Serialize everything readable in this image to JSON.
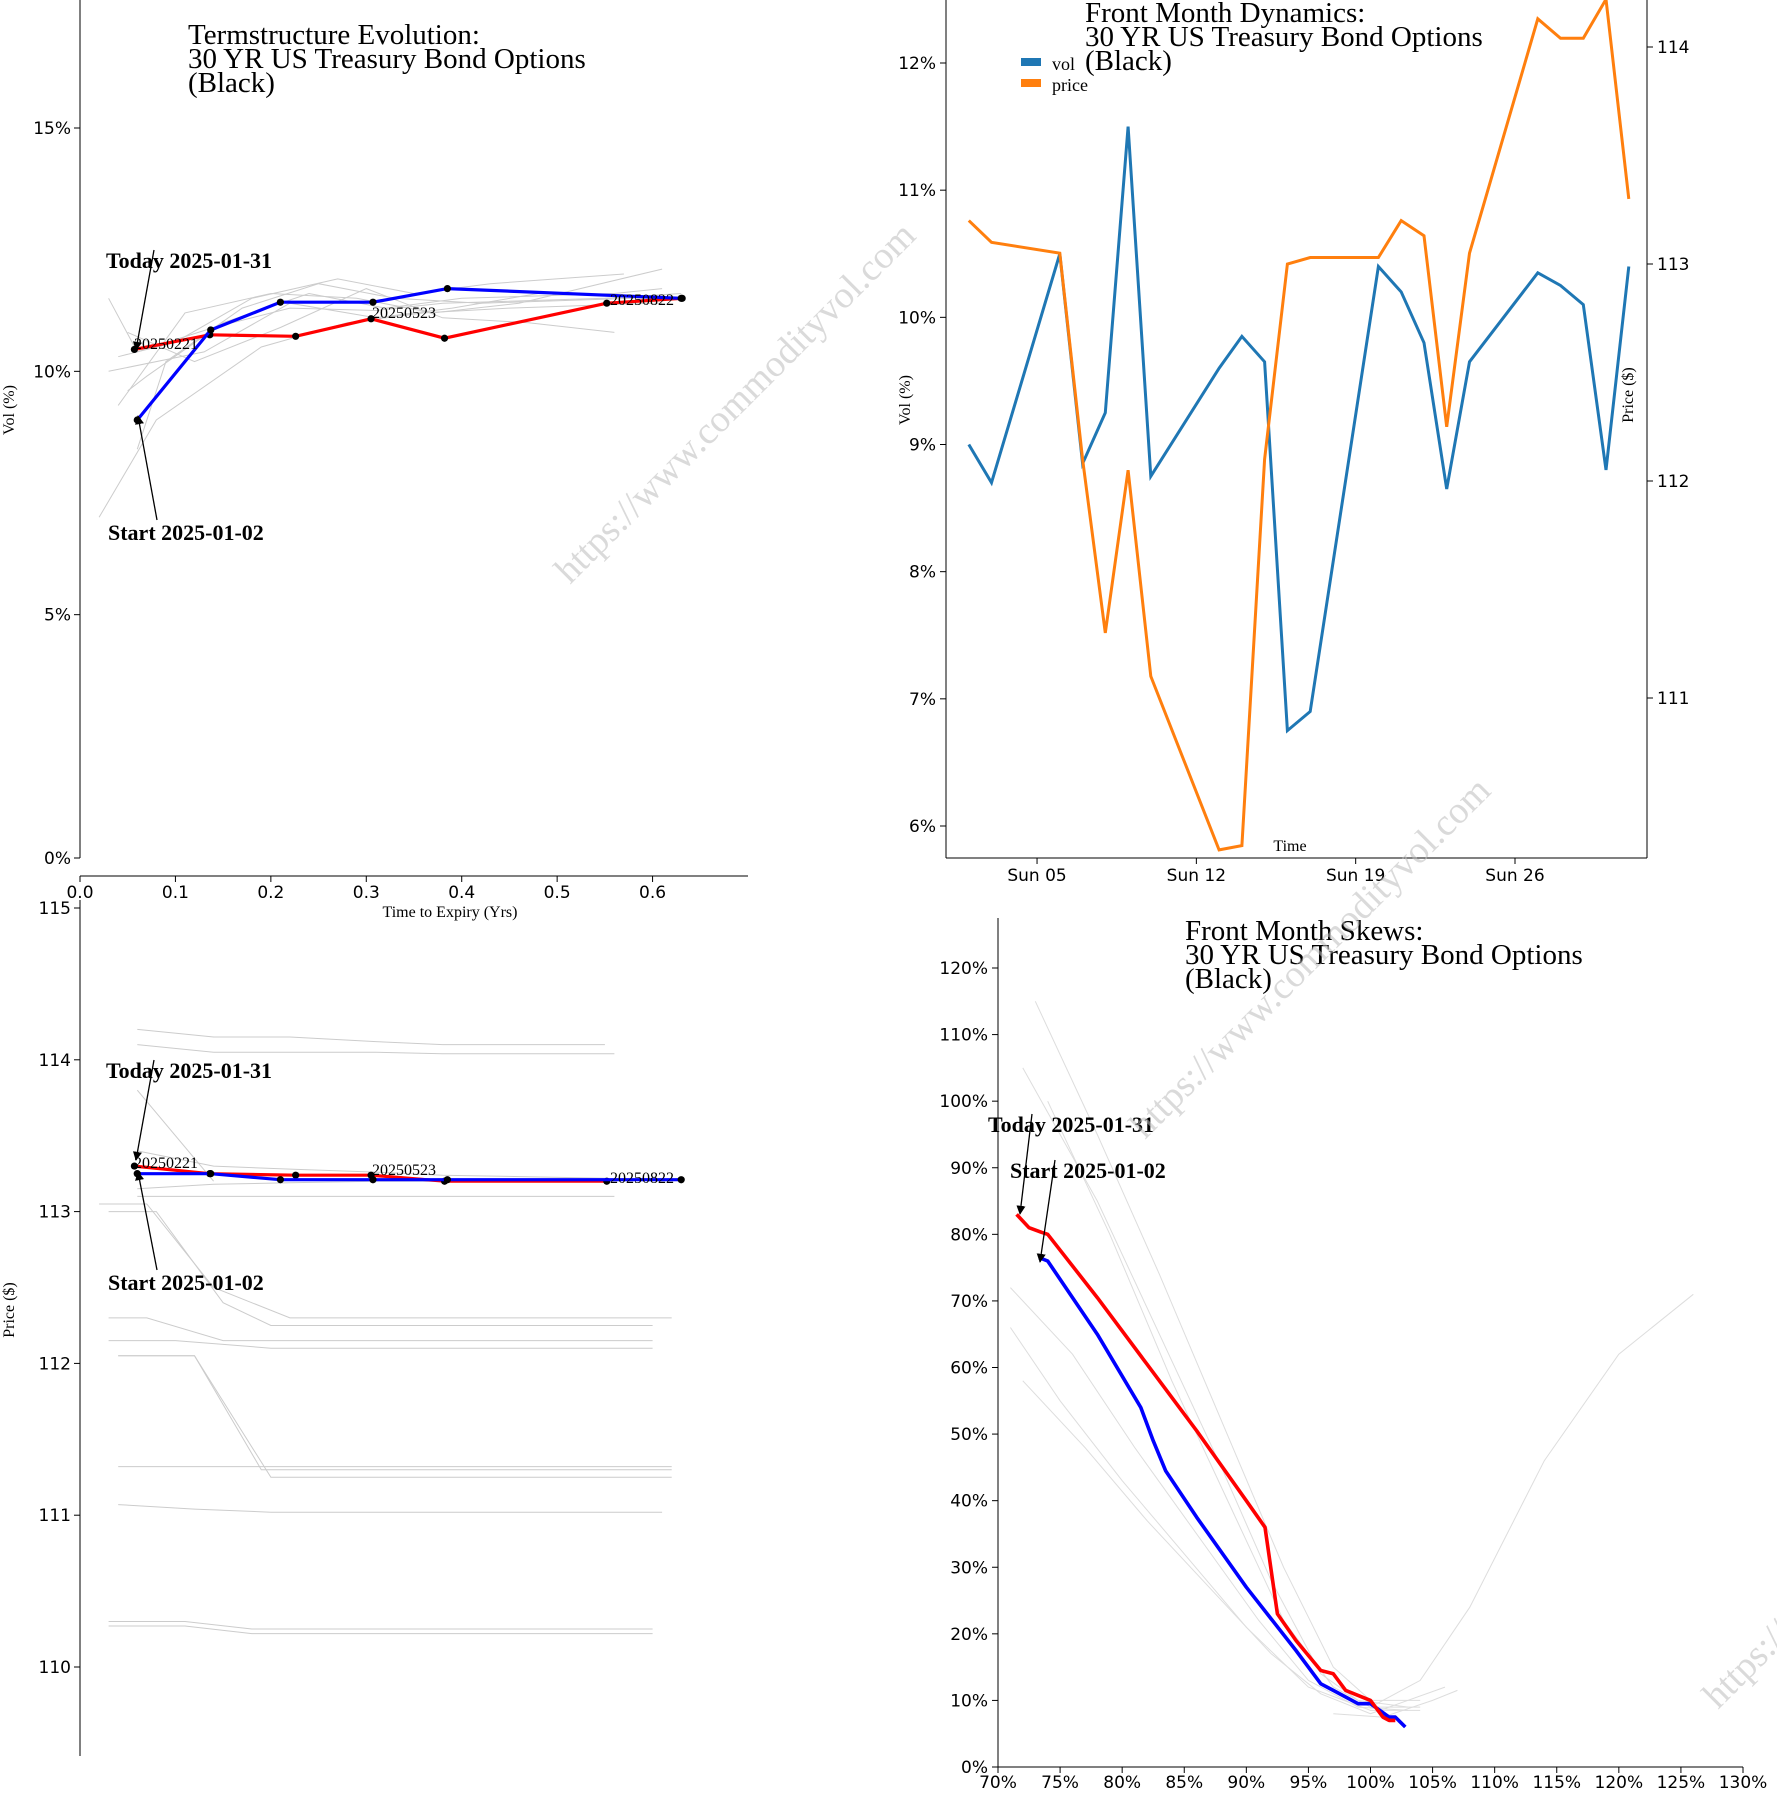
{
  "watermark": "https://www.commodityvol.com",
  "colors": {
    "today": "#ff0000",
    "start": "#0000ff",
    "history": "#cccccc",
    "vol": "#1f77b4",
    "price": "#ff7f0e"
  },
  "chart_data": [
    {
      "id": "termstructure-vol",
      "type": "line",
      "title": [
        "Termstructure Evolution:",
        "30 YR US Treasury Bond Options",
        "(Black)"
      ],
      "xlabel": "Time to Expiry (Yrs)",
      "ylabel": "Vol (%)",
      "xlim": [
        0,
        0.7
      ],
      "ylim": [
        0,
        17.5
      ],
      "xticks": [
        "0.0",
        "0.1",
        "0.2",
        "0.3",
        "0.4",
        "0.5",
        "0.6"
      ],
      "yticks": [
        "0%",
        "5%",
        "10%",
        "15%"
      ],
      "annotations": {
        "today": "Today 2025-01-31",
        "start": "Start 2025-01-02"
      },
      "point_labels": [
        "20250221",
        "20250523",
        "20250822"
      ],
      "series": [
        {
          "role": "today",
          "x": [
            0.057,
            0.136,
            0.226,
            0.305,
            0.382,
            0.552,
            0.631
          ],
          "y": [
            10.45,
            10.75,
            10.72,
            11.08,
            10.68,
            11.4,
            11.5
          ]
        },
        {
          "role": "start",
          "x": [
            0.06,
            0.137,
            0.21,
            0.307,
            0.385,
            0.63
          ],
          "y": [
            9.0,
            10.85,
            11.42,
            11.42,
            11.7,
            11.5
          ]
        }
      ],
      "history": [
        {
          "x": [
            0.03,
            0.06,
            0.14,
            0.22,
            0.31,
            0.38,
            0.55,
            0.63
          ],
          "y": [
            11.5,
            10.4,
            10.9,
            11.3,
            11.25,
            11.4,
            11.5,
            11.6
          ]
        },
        {
          "x": [
            0.05,
            0.07,
            0.15,
            0.24,
            0.32,
            0.4,
            0.56,
            0.61
          ],
          "y": [
            9.6,
            9.9,
            11.0,
            11.6,
            11.3,
            11.5,
            11.6,
            11.7
          ]
        },
        {
          "x": [
            0.06,
            0.09,
            0.17,
            0.25,
            0.33,
            0.42,
            0.58,
            0.61
          ],
          "y": [
            8.4,
            10.2,
            11.3,
            11.8,
            11.5,
            11.4,
            11.5,
            11.5
          ]
        },
        {
          "x": [
            0.04,
            0.1,
            0.18,
            0.27,
            0.35,
            0.43,
            0.57
          ],
          "y": [
            10.3,
            10.6,
            11.5,
            11.9,
            11.6,
            11.8,
            12.0
          ]
        },
        {
          "x": [
            0.02,
            0.08,
            0.19,
            0.28,
            0.36,
            0.45,
            0.6,
            0.61
          ],
          "y": [
            7.0,
            9.0,
            10.5,
            11.0,
            11.2,
            11.3,
            11.4,
            11.4
          ]
        },
        {
          "x": [
            0.04,
            0.11,
            0.2,
            0.29,
            0.37,
            0.46,
            0.61
          ],
          "y": [
            9.3,
            11.2,
            11.6,
            11.5,
            11.2,
            11.4,
            12.1
          ]
        },
        {
          "x": [
            0.05,
            0.12,
            0.21,
            0.3,
            0.38,
            0.47,
            0.56
          ],
          "y": [
            10.8,
            10.2,
            10.9,
            11.7,
            11.1,
            11.0,
            10.8
          ]
        },
        {
          "x": [
            0.03,
            0.13,
            0.22,
            0.31,
            0.39,
            0.48
          ],
          "y": [
            10.0,
            10.4,
            11.4,
            11.1,
            11.3,
            11.6
          ]
        }
      ]
    },
    {
      "id": "termstructure-price",
      "type": "line",
      "title": [],
      "xlabel": "",
      "ylabel": "Price ($)",
      "xlim": [
        0,
        0.7
      ],
      "ylim": [
        109.4,
        115
      ],
      "yticks": [
        "110",
        "111",
        "112",
        "113",
        "114",
        "115"
      ],
      "annotations": {
        "today": "Today 2025-01-31",
        "start": "Start 2025-01-02"
      },
      "point_labels": [
        "20250221",
        "20250523",
        "20250822"
      ],
      "series": [
        {
          "role": "today",
          "x": [
            0.057,
            0.136,
            0.226,
            0.305,
            0.382,
            0.552
          ],
          "y": [
            113.3,
            113.25,
            113.24,
            113.24,
            113.2,
            113.2
          ]
        },
        {
          "role": "start",
          "x": [
            0.06,
            0.137,
            0.21,
            0.307,
            0.385,
            0.63
          ],
          "y": [
            113.25,
            113.25,
            113.21,
            113.21,
            113.21,
            113.21
          ]
        }
      ],
      "history": [
        {
          "x": [
            0.06,
            0.14,
            0.22,
            0.31,
            0.38,
            0.55
          ],
          "y": [
            114.2,
            114.15,
            114.15,
            114.12,
            114.1,
            114.1
          ]
        },
        {
          "x": [
            0.06,
            0.14,
            0.22,
            0.31,
            0.38,
            0.56
          ],
          "y": [
            114.1,
            114.05,
            114.05,
            114.05,
            114.04,
            114.04
          ]
        },
        {
          "x": [
            0.06,
            0.14,
            0.22,
            0.31,
            0.4,
            0.56
          ],
          "y": [
            113.1,
            113.1,
            113.1,
            113.1,
            113.1,
            113.1
          ]
        },
        {
          "x": [
            0.02,
            0.07,
            0.14,
            0.22,
            0.31,
            0.4,
            0.62
          ],
          "y": [
            113.05,
            113.05,
            112.5,
            112.3,
            112.3,
            112.3,
            112.3
          ]
        },
        {
          "x": [
            0.03,
            0.08,
            0.15,
            0.2,
            0.31,
            0.44,
            0.6
          ],
          "y": [
            113.0,
            113.0,
            112.4,
            112.25,
            112.25,
            112.25,
            112.25
          ]
        },
        {
          "x": [
            0.03,
            0.07,
            0.15,
            0.31,
            0.6
          ],
          "y": [
            112.3,
            112.3,
            112.15,
            112.15,
            112.15
          ]
        },
        {
          "x": [
            0.03,
            0.1,
            0.2,
            0.31,
            0.6
          ],
          "y": [
            112.15,
            112.15,
            112.1,
            112.1,
            112.1
          ]
        },
        {
          "x": [
            0.04,
            0.12,
            0.19,
            0.31,
            0.62
          ],
          "y": [
            112.05,
            112.05,
            111.3,
            111.3,
            111.3
          ]
        },
        {
          "x": [
            0.04,
            0.12,
            0.2,
            0.31,
            0.62
          ],
          "y": [
            112.05,
            112.05,
            111.25,
            111.25,
            111.25
          ]
        },
        {
          "x": [
            0.04,
            0.12,
            0.2,
            0.31,
            0.62
          ],
          "y": [
            111.32,
            111.32,
            111.32,
            111.32,
            111.32
          ]
        },
        {
          "x": [
            0.04,
            0.12,
            0.2,
            0.31,
            0.61
          ],
          "y": [
            111.07,
            111.04,
            111.02,
            111.02,
            111.02
          ]
        },
        {
          "x": [
            0.03,
            0.11,
            0.18,
            0.31,
            0.6
          ],
          "y": [
            110.3,
            110.3,
            110.25,
            110.25,
            110.25
          ]
        },
        {
          "x": [
            0.03,
            0.11,
            0.18,
            0.31,
            0.6
          ],
          "y": [
            110.27,
            110.27,
            110.22,
            110.22,
            110.22
          ]
        },
        {
          "x": [
            0.06,
            0.14,
            0.22,
            0.31,
            0.38,
            0.55
          ],
          "y": [
            113.4,
            113.3,
            113.28,
            113.26,
            113.24,
            113.22
          ]
        },
        {
          "x": [
            0.06,
            0.14,
            0.22,
            0.31,
            0.38,
            0.55
          ],
          "y": [
            113.15,
            113.18,
            113.19,
            113.2,
            113.2,
            113.2
          ]
        },
        {
          "x": [
            0.06,
            0.14
          ],
          "y": [
            113.8,
            113.2
          ]
        }
      ]
    },
    {
      "id": "front-month-dynamics",
      "type": "line",
      "title": [
        "Front Month Dynamics:",
        "30 YR US Treasury Bond Options",
        "(Black)"
      ],
      "xlabel": "Time",
      "ylabel": "Vol (%)",
      "y2label": "Price ($)",
      "xlim": [
        1.0,
        31.8
      ],
      "ylim": [
        5.75,
        12.75
      ],
      "y2lim": [
        110.3,
        114.2
      ],
      "xticks": [
        "Sun 05",
        "Sun 12",
        "Sun 19",
        "Sun 26"
      ],
      "xtick_values": [
        5,
        12,
        19,
        26
      ],
      "yticks": [
        "6%",
        "7%",
        "8%",
        "9%",
        "10%",
        "11%",
        "12%"
      ],
      "y2ticks": [
        "111",
        "112",
        "113",
        "114"
      ],
      "legend": [
        "vol",
        "price"
      ],
      "legend_position": "top-left",
      "series": [
        {
          "name": "vol",
          "x": [
            2,
            3,
            6,
            7,
            8,
            9,
            10,
            13,
            14,
            15,
            16,
            17,
            20,
            21,
            22,
            23,
            24,
            27,
            28,
            29,
            30,
            31
          ],
          "y": [
            9.0,
            8.7,
            10.5,
            8.85,
            9.25,
            11.5,
            8.75,
            9.6,
            9.85,
            9.65,
            6.75,
            6.9,
            10.4,
            10.2,
            9.8,
            8.65,
            9.65,
            10.35,
            10.25,
            10.1,
            8.8,
            10.4
          ]
        },
        {
          "name": "price",
          "x": [
            2,
            3,
            6,
            7,
            8,
            9,
            10,
            13,
            14,
            15,
            16,
            17,
            20,
            21,
            22,
            23,
            24,
            27,
            28,
            29,
            30,
            31
          ],
          "y": [
            113.2,
            113.1,
            113.05,
            112.1,
            111.3,
            112.05,
            111.1,
            110.3,
            110.32,
            112.1,
            113.0,
            113.03,
            113.03,
            113.2,
            113.13,
            112.25,
            113.05,
            114.13,
            114.04,
            114.04,
            114.22,
            113.3
          ]
        }
      ]
    },
    {
      "id": "front-month-skews",
      "type": "line",
      "title": [
        "Front Month Skews:",
        "30 YR US Treasury Bond Options",
        "(Black)"
      ],
      "xlabel": "",
      "ylabel": "",
      "xlim": [
        70,
        130
      ],
      "ylim": [
        0,
        128
      ],
      "xticks": [
        "70%",
        "75%",
        "80%",
        "85%",
        "90%",
        "95%",
        "100%",
        "105%",
        "110%",
        "115%",
        "120%",
        "125%",
        "130%"
      ],
      "yticks": [
        "0%",
        "10%",
        "20%",
        "30%",
        "40%",
        "50%",
        "60%",
        "70%",
        "80%",
        "90%",
        "100%",
        "110%",
        "120%"
      ],
      "annotations": {
        "today": "Today 2025-01-31",
        "start": "Start 2025-01-02"
      },
      "series": [
        {
          "role": "today",
          "x": [
            71.5,
            72.5,
            73.5,
            74.0,
            78.0,
            82.0,
            86.0,
            90.0,
            91.5,
            92.5,
            94.0,
            96.0,
            97.0,
            98.0,
            100.0,
            101.0,
            101.5,
            102.0
          ],
          "y": [
            83,
            81,
            80.3,
            80,
            70.5,
            60.5,
            50.5,
            40,
            36,
            23,
            19,
            14.5,
            14,
            11.5,
            10,
            7.5,
            7,
            7
          ]
        },
        {
          "role": "start",
          "x": [
            73.3,
            74.0,
            78.0,
            81.5,
            82.5,
            83.5,
            86.0,
            90.0,
            94.0,
            96.0,
            97.0,
            99.0,
            100.0,
            101.5,
            102.0,
            102.8
          ],
          "y": [
            76.5,
            76,
            65,
            54,
            49,
            44.5,
            37.5,
            27,
            17.5,
            12.5,
            11.5,
            9.5,
            9.5,
            7.5,
            7.5,
            6
          ]
        }
      ],
      "history": [
        {
          "x": [
            73,
            78,
            83,
            88,
            93,
            97,
            100,
            104
          ],
          "y": [
            115,
            95,
            74,
            52,
            30,
            15,
            10,
            10
          ]
        },
        {
          "x": [
            72,
            78,
            83,
            88,
            92,
            96,
            99,
            103
          ],
          "y": [
            105,
            85,
            65,
            45,
            28,
            14,
            10,
            9
          ]
        },
        {
          "x": [
            71,
            76,
            81,
            86,
            91,
            95,
            99,
            103
          ],
          "y": [
            72,
            62,
            48,
            35,
            22,
            13,
            9,
            8.5
          ]
        },
        {
          "x": [
            71,
            75,
            80,
            85,
            90,
            95,
            100,
            104
          ],
          "y": [
            66,
            55,
            43,
            32,
            21,
            12,
            8.5,
            8.5
          ]
        },
        {
          "x": [
            72,
            77,
            82,
            87,
            92,
            96,
            100,
            106
          ],
          "y": [
            58,
            48,
            37,
            27,
            17,
            11,
            8,
            12
          ]
        },
        {
          "x": [
            74,
            79,
            84,
            89,
            93,
            97,
            100,
            104
          ],
          "y": [
            100,
            80,
            58,
            38,
            22,
            12,
            9,
            9
          ]
        },
        {
          "x": [
            100,
            104,
            108,
            114,
            120,
            126
          ],
          "y": [
            9,
            13,
            24,
            46,
            62,
            71
          ]
        },
        {
          "x": [
            97,
            101,
            105,
            107
          ],
          "y": [
            8,
            7.5,
            10,
            11.5
          ]
        }
      ]
    }
  ]
}
